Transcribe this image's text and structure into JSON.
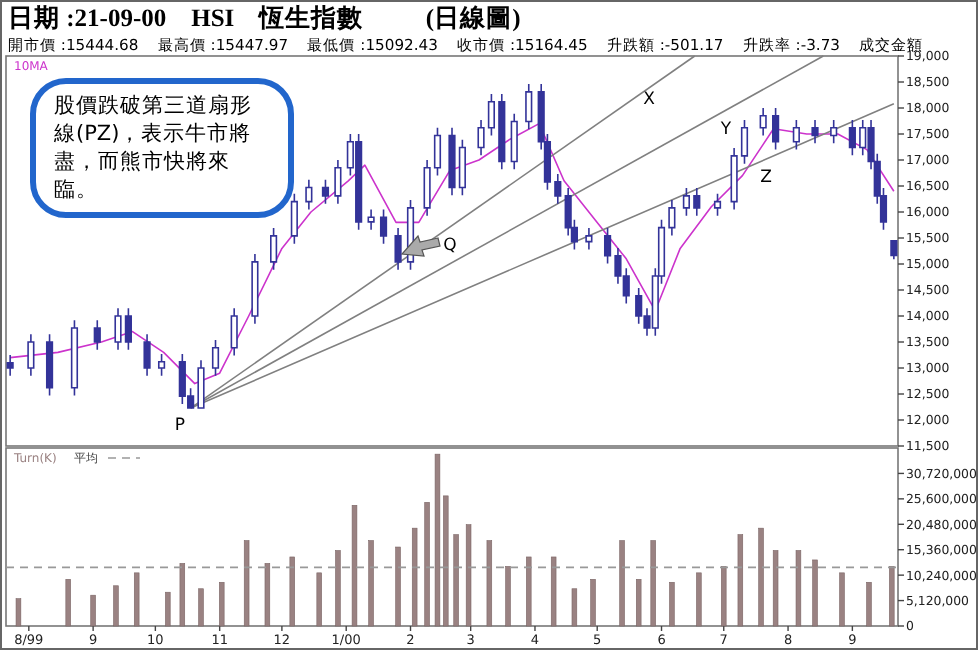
{
  "chart_data": [
    {
      "type": "candlestick",
      "title": "日期 :21-09-00    HSI    恆生指數          (日線圖)",
      "subtitle": "開市價 :15444.68    最高價 :15447.97    最低價 :15092.43    收市價 :15164.45    升跌額 :-501.17    升跌率 :-3.73    成交金額",
      "color": "#333399",
      "x": [
        "1999-07-23",
        "1999-08-02",
        "1999-08-11",
        "1999-08-23",
        "1999-09-03",
        "1999-09-13",
        "1999-09-18",
        "1999-09-27",
        "1999-10-04",
        "1999-10-14",
        "1999-10-18",
        "1999-10-23",
        "1999-10-30",
        "1999-11-08",
        "1999-11-18",
        "1999-11-27",
        "1999-12-07",
        "1999-12-14",
        "1999-12-22",
        "1999-12-28",
        "2000-01-03",
        "2000-01-07",
        "2000-01-13",
        "2000-01-19",
        "2000-01-26",
        "2000-02-01",
        "2000-02-09",
        "2000-02-14",
        "2000-02-21",
        "2000-02-26",
        "2000-03-06",
        "2000-03-11",
        "2000-03-16",
        "2000-03-22",
        "2000-03-29",
        "2000-04-04",
        "2000-04-07",
        "2000-04-12",
        "2000-04-17",
        "2000-04-20",
        "2000-04-27",
        "2000-05-06",
        "2000-05-11",
        "2000-05-15",
        "2000-05-21",
        "2000-05-25",
        "2000-05-29",
        "2000-06-01",
        "2000-06-06",
        "2000-06-13",
        "2000-06-18",
        "2000-06-28",
        "2000-07-06",
        "2000-07-11",
        "2000-07-20",
        "2000-07-26",
        "2000-08-05",
        "2000-08-14",
        "2000-08-23",
        "2000-09-01",
        "2000-09-06",
        "2000-09-10",
        "2000-09-13",
        "2000-09-16",
        "2000-09-21"
      ],
      "ohlc": [
        [
          13100,
          13250,
          12850,
          13000
        ],
        [
          13000,
          13650,
          12850,
          13500
        ],
        [
          13500,
          13650,
          12470,
          12620
        ],
        [
          12620,
          13920,
          12470,
          13770
        ],
        [
          13770,
          13920,
          13350,
          13500
        ],
        [
          13500,
          14150,
          13350,
          14000
        ],
        [
          14000,
          14150,
          13350,
          13500
        ],
        [
          13500,
          13650,
          12850,
          13000
        ],
        [
          13000,
          13270,
          12850,
          13120
        ],
        [
          13120,
          13270,
          12310,
          12460
        ],
        [
          12460,
          12610,
          12230,
          12230
        ],
        [
          12230,
          13150,
          12230,
          13000
        ],
        [
          13000,
          13540,
          12850,
          13390
        ],
        [
          13390,
          14150,
          13240,
          14000
        ],
        [
          14000,
          15190,
          13850,
          15040
        ],
        [
          15040,
          15690,
          14890,
          15540
        ],
        [
          15540,
          16350,
          15390,
          16200
        ],
        [
          16200,
          16620,
          16050,
          16470
        ],
        [
          16470,
          16620,
          16160,
          16310
        ],
        [
          16310,
          17000,
          16160,
          16850
        ],
        [
          16850,
          17500,
          16700,
          17350
        ],
        [
          17350,
          17500,
          15660,
          15810
        ],
        [
          15810,
          16050,
          15660,
          15900
        ],
        [
          15900,
          16050,
          15390,
          15540
        ],
        [
          15540,
          15690,
          14890,
          15040
        ],
        [
          15040,
          16230,
          14890,
          16080
        ],
        [
          16080,
          17000,
          15930,
          16850
        ],
        [
          16850,
          17620,
          16700,
          17470
        ],
        [
          17470,
          17620,
          16320,
          16470
        ],
        [
          16470,
          17390,
          16320,
          17240
        ],
        [
          17240,
          17770,
          17090,
          17620
        ],
        [
          17620,
          18270,
          17470,
          18120
        ],
        [
          18120,
          18270,
          16820,
          16970
        ],
        [
          16970,
          17890,
          16820,
          17740
        ],
        [
          17740,
          18460,
          17590,
          18310
        ],
        [
          18310,
          18460,
          17200,
          17350
        ],
        [
          17350,
          17500,
          16430,
          16580
        ],
        [
          16580,
          16730,
          16160,
          16310
        ],
        [
          16310,
          16460,
          15550,
          15700
        ],
        [
          15700,
          15850,
          15280,
          15430
        ],
        [
          15430,
          15690,
          15280,
          15540
        ],
        [
          15540,
          15690,
          15010,
          15160
        ],
        [
          15160,
          15310,
          14620,
          14770
        ],
        [
          14770,
          14920,
          14240,
          14390
        ],
        [
          14390,
          14540,
          13850,
          14000
        ],
        [
          14000,
          14150,
          13620,
          13770
        ],
        [
          13770,
          14920,
          13620,
          14770
        ],
        [
          14770,
          15850,
          14620,
          15700
        ],
        [
          15700,
          16230,
          15550,
          16080
        ],
        [
          16080,
          16460,
          15930,
          16310
        ],
        [
          16310,
          16460,
          15930,
          16080
        ],
        [
          16080,
          16350,
          15930,
          16200
        ],
        [
          16200,
          17230,
          16050,
          17080
        ],
        [
          17080,
          17770,
          16930,
          17620
        ],
        [
          17620,
          18000,
          17470,
          17850
        ],
        [
          17850,
          18000,
          17200,
          17350
        ],
        [
          17350,
          17770,
          17200,
          17620
        ],
        [
          17620,
          17770,
          17320,
          17470
        ],
        [
          17470,
          17770,
          17320,
          17620
        ],
        [
          17620,
          17770,
          17090,
          17240
        ],
        [
          17240,
          17770,
          17090,
          17620
        ],
        [
          17620,
          17770,
          16820,
          16970
        ],
        [
          16970,
          17120,
          16160,
          16310
        ],
        [
          16310,
          16460,
          15660,
          15810
        ],
        [
          15444.68,
          15447.97,
          15092.43,
          15164.45
        ]
      ],
      "series": [
        {
          "name": "10MA",
          "type": "line",
          "color": "#cc33cc",
          "x": [
            "1999-07-23",
            "1999-08-15",
            "1999-09-05",
            "1999-09-20",
            "1999-10-05",
            "1999-10-20",
            "1999-11-01",
            "1999-11-15",
            "1999-12-01",
            "1999-12-15",
            "2000-01-02",
            "2000-01-10",
            "2000-01-25",
            "2000-02-05",
            "2000-02-20",
            "2000-03-05",
            "2000-03-20",
            "2000-04-03",
            "2000-04-15",
            "2000-05-01",
            "2000-05-15",
            "2000-05-29",
            "2000-06-10",
            "2000-06-25",
            "2000-07-10",
            "2000-07-25",
            "2000-08-10",
            "2000-08-25",
            "2000-09-08",
            "2000-09-21"
          ],
          "values": [
            13200,
            13300,
            13500,
            13700,
            13300,
            12700,
            12900,
            14000,
            15300,
            16000,
            16600,
            16900,
            15800,
            15800,
            16800,
            17000,
            17400,
            17700,
            16600,
            15800,
            15100,
            14100,
            15300,
            16100,
            16700,
            17600,
            17500,
            17500,
            17200,
            16400
          ]
        },
        {
          "type": "line",
          "color": "#808080",
          "x": [
            "1999-10-18",
            "2000-06-17"
          ],
          "values": [
            12230,
            19000
          ]
        },
        {
          "type": "line",
          "color": "#808080",
          "x": [
            "1999-10-18",
            "2000-08-18"
          ],
          "values": [
            12230,
            19000
          ]
        },
        {
          "type": "line",
          "color": "#808080",
          "x": [
            "1999-10-18",
            "2000-09-21"
          ],
          "values": [
            12230,
            18080
          ]
        }
      ],
      "xlim": [
        "1999-07-21",
        "2000-09-23"
      ],
      "ylim": [
        11500,
        19000
      ],
      "yticks": [
        {
          "value": 11500,
          "label": "11,500"
        },
        {
          "value": 12000,
          "label": "12,000"
        },
        {
          "value": 12500,
          "label": "12,500"
        },
        {
          "value": 13000,
          "label": "13,000"
        },
        {
          "value": 13500,
          "label": "13,500"
        },
        {
          "value": 14000,
          "label": "14,000"
        },
        {
          "value": 14500,
          "label": "14,500"
        },
        {
          "value": 15000,
          "label": "15,000"
        },
        {
          "value": 15500,
          "label": "15,500"
        },
        {
          "value": 16000,
          "label": "16,000"
        },
        {
          "value": 16500,
          "label": "16,500"
        },
        {
          "value": 17000,
          "label": "17,000"
        },
        {
          "value": 17500,
          "label": "17,500"
        },
        {
          "value": 18000,
          "label": "18,000"
        },
        {
          "value": 18500,
          "label": "18,500"
        },
        {
          "value": 19000,
          "label": "19,000"
        }
      ],
      "tick_labels": "y",
      "legend": "top left",
      "annotations": [
        "股價跌破第三道扇形線(PZ)，表示牛市將盡，而熊市快將來臨。",
        "P",
        "Q",
        {
          "text": "X",
          "x": "2000-05-26",
          "y": 18200
        },
        "Y",
        "Z"
      ]
    },
    {
      "type": "bar",
      "x": [
        "1999-07-27",
        "1999-08-20",
        "1999-09-01",
        "1999-09-12",
        "1999-09-22",
        "1999-10-07",
        "1999-10-14",
        "1999-10-23",
        "1999-11-02",
        "1999-11-14",
        "1999-11-24",
        "1999-12-06",
        "1999-12-19",
        "1999-12-28",
        "2000-01-05",
        "2000-01-13",
        "2000-01-26",
        "2000-02-03",
        "2000-02-09",
        "2000-02-14",
        "2000-02-18",
        "2000-02-23",
        "2000-02-29",
        "2000-03-10",
        "2000-03-19",
        "2000-03-29",
        "2000-04-10",
        "2000-04-20",
        "2000-04-29",
        "2000-05-13",
        "2000-05-21",
        "2000-05-28",
        "2000-06-06",
        "2000-06-19",
        "2000-07-01",
        "2000-07-09",
        "2000-07-19",
        "2000-07-26",
        "2000-08-06",
        "2000-08-14",
        "2000-08-27",
        "2000-09-09",
        "2000-09-20"
      ],
      "series": [
        {
          "name": "Turn(K)",
          "color": "#9a8282",
          "values": [
            5500000,
            9400000,
            6200000,
            8100000,
            10700000,
            6800000,
            12600000,
            7500000,
            8800000,
            17200000,
            12600000,
            13900000,
            10700000,
            15200000,
            24300000,
            17200000,
            15900000,
            19700000,
            24900000,
            34600000,
            26200000,
            18400000,
            20400000,
            17200000,
            12000000,
            13900000,
            13900000,
            7500000,
            9400000,
            17200000,
            9400000,
            17200000,
            8800000,
            10700000,
            12000000,
            18400000,
            19700000,
            15200000,
            15200000,
            13300000,
            10700000,
            8800000,
            12000000
          ]
        }
      ],
      "ref_lines": [
        {
          "axis": "y",
          "value": 11800000,
          "label": "平均",
          "line_style": "dashed",
          "color": "#999999"
        }
      ],
      "xlim": [
        "1999-07-21",
        "2000-09-23"
      ],
      "ylim": [
        0,
        35840000
      ],
      "xticks": [
        {
          "value": "1999-08-01",
          "label": "8/99"
        },
        {
          "value": "1999-09-01",
          "label": "9"
        },
        {
          "value": "1999-10-01",
          "label": "10"
        },
        {
          "value": "1999-11-01",
          "label": "11"
        },
        {
          "value": "1999-12-01",
          "label": "12"
        },
        {
          "value": "2000-01-01",
          "label": "1/00"
        },
        {
          "value": "2000-02-01",
          "label": "2"
        },
        {
          "value": "2000-03-01",
          "label": "3"
        },
        {
          "value": "2000-04-01",
          "label": "4"
        },
        {
          "value": "2000-05-01",
          "label": "5"
        },
        {
          "value": "2000-06-01",
          "label": "6"
        },
        {
          "value": "2000-07-01",
          "label": "7"
        },
        {
          "value": "2000-08-01",
          "label": "8"
        },
        {
          "value": "2000-09-01",
          "label": "9"
        }
      ],
      "yticks": [
        0,
        {
          "value": 5120000,
          "label": "5,120,000"
        },
        {
          "value": 10240000,
          "label": "10,240,000"
        },
        {
          "value": 15360000,
          "label": "15,360,000"
        },
        {
          "value": 20480000,
          "label": "20,480,000"
        },
        {
          "value": 25600000,
          "label": "25,600,000"
        },
        {
          "value": 30720000,
          "label": "30,720,000"
        }
      ],
      "legend": "top left"
    }
  ]
}
